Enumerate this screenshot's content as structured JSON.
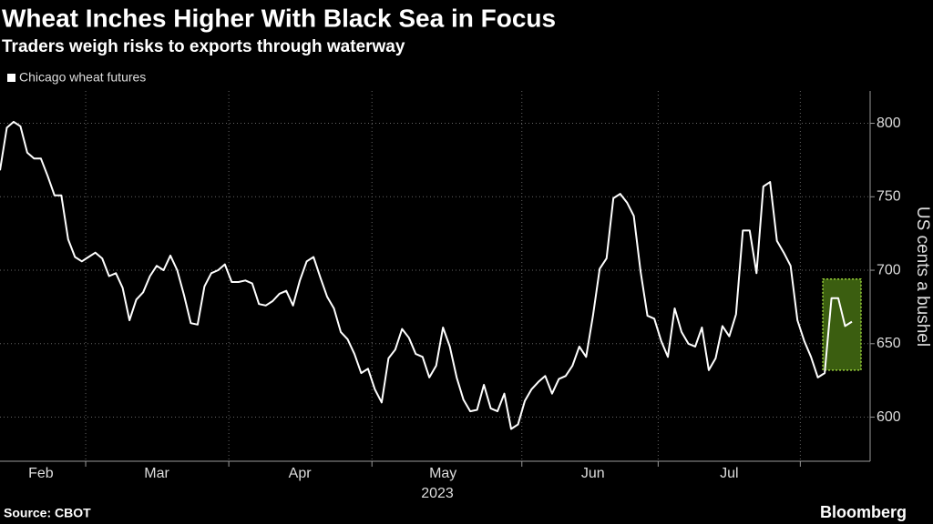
{
  "chart_data": {
    "type": "line",
    "title": "Wheat Inches Higher With Black Sea in Focus",
    "subtitle": "Traders weigh risks to exports through waterway",
    "x_label": "2023",
    "y_label": "US cents a bushel",
    "source": "Source: CBOT",
    "brand": "Bloomberg",
    "categories": [
      null,
      null,
      null,
      null,
      null,
      null,
      "Feb",
      null,
      null,
      null,
      null,
      null,
      null,
      null,
      null,
      null,
      null,
      null,
      null,
      null,
      null,
      null,
      null,
      "Mar",
      null,
      null,
      null,
      null,
      null,
      null,
      null,
      null,
      null,
      null,
      null,
      null,
      null,
      null,
      null,
      null,
      null,
      null,
      null,
      null,
      "Apr",
      null,
      null,
      null,
      null,
      null,
      null,
      null,
      null,
      null,
      null,
      null,
      null,
      null,
      null,
      null,
      null,
      null,
      null,
      null,
      null,
      "May",
      null,
      null,
      null,
      null,
      null,
      null,
      null,
      null,
      null,
      null,
      null,
      null,
      null,
      null,
      null,
      null,
      null,
      null,
      null,
      null,
      null,
      "Jun",
      null,
      null,
      null,
      null,
      null,
      null,
      null,
      null,
      null,
      null,
      null,
      null,
      null,
      null,
      null,
      null,
      null,
      null,
      null,
      "Jul",
      null,
      null,
      null,
      null,
      null,
      null,
      null,
      null,
      null,
      null,
      null,
      null,
      null,
      null,
      null,
      null,
      null,
      null
    ],
    "series": [
      {
        "name": "Chicago wheat futures",
        "color": "#ffffff",
        "values": [
          768,
          797,
          801,
          798,
          780,
          776,
          776,
          764,
          751,
          751,
          721,
          709,
          706,
          709,
          712,
          708,
          696,
          698,
          688,
          666,
          680,
          685,
          696,
          703,
          700,
          710,
          700,
          683,
          664,
          663,
          689,
          698,
          700,
          704,
          692,
          692,
          693,
          691,
          677,
          676,
          679,
          684,
          686,
          676,
          693,
          706,
          709,
          695,
          682,
          674,
          658,
          653,
          643,
          630,
          633,
          619,
          610,
          640,
          646,
          660,
          654,
          643,
          641,
          627,
          635,
          661,
          648,
          627,
          612,
          604,
          605,
          622,
          606,
          604,
          616,
          592,
          595,
          611,
          619,
          624,
          628,
          616,
          626,
          628,
          635,
          648,
          641,
          669,
          701,
          708,
          749,
          752,
          746,
          737,
          699,
          669,
          667,
          652,
          641,
          674,
          658,
          650,
          648,
          661,
          632,
          640,
          662,
          655,
          670,
          727,
          727,
          698,
          757,
          760,
          720,
          712,
          703,
          666,
          652,
          641,
          627,
          630,
          681,
          681,
          662,
          665
        ]
      }
    ],
    "highlight": {
      "ylim": [
        632,
        694
      ],
      "color": "#3b5e10",
      "border": "#9ad13a"
    },
    "ylim": [
      570,
      822
    ],
    "yticks": [
      600,
      650,
      700,
      750,
      800
    ],
    "grid": true
  }
}
